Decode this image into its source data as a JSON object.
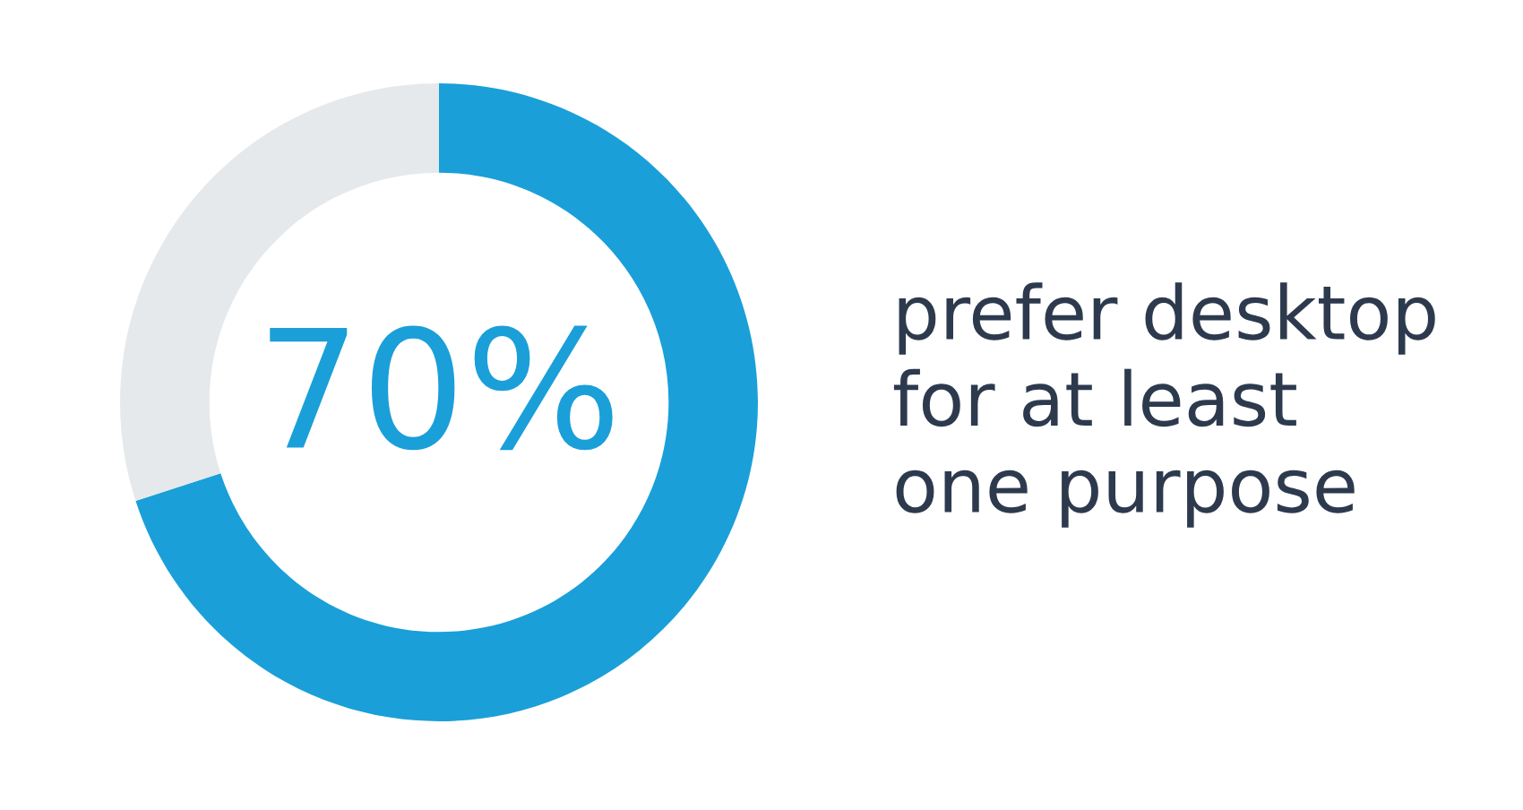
{
  "chart_data": {
    "type": "donut",
    "categories": [
      null,
      null
    ],
    "values": [
      70,
      30
    ],
    "colors": [
      "#1a9fd9",
      "#e5e9eb"
    ],
    "value_labels": [
      "70%",
      null
    ],
    "annotations": [
      "prefer desktop\nfor at least\none purpose"
    ]
  }
}
